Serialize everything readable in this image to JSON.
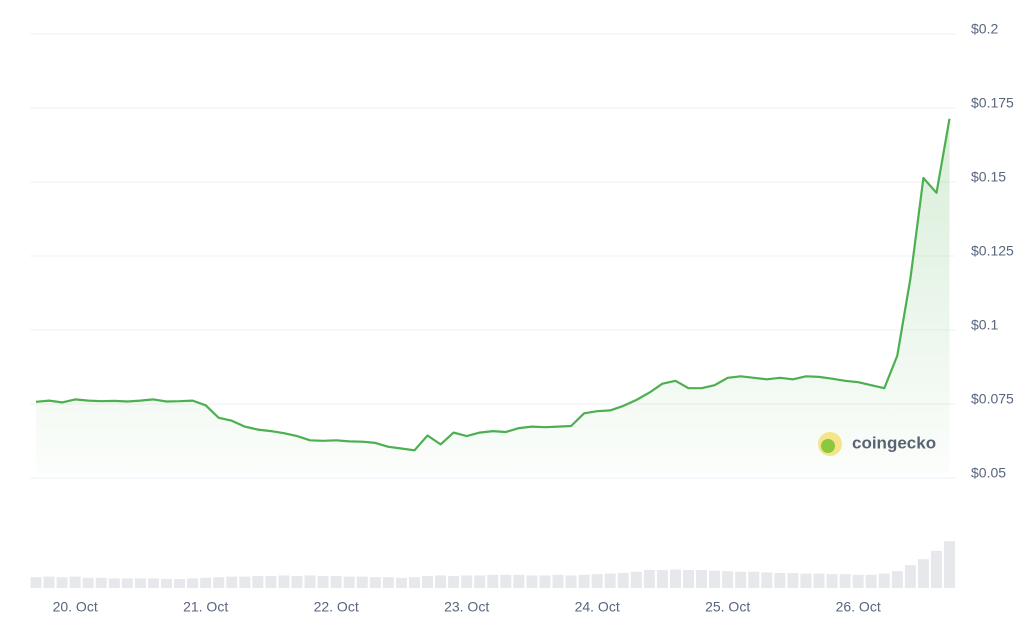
{
  "chart_data": {
    "type": "line",
    "categories": [
      null,
      null,
      null,
      "20. Oct",
      null,
      null,
      null,
      null,
      null,
      null,
      null,
      null,
      null,
      "21. Oct",
      null,
      null,
      null,
      null,
      null,
      null,
      null,
      null,
      null,
      "22. Oct",
      null,
      null,
      null,
      null,
      null,
      null,
      null,
      null,
      null,
      "23. Oct",
      null,
      null,
      null,
      null,
      null,
      null,
      null,
      null,
      null,
      "24. Oct",
      null,
      null,
      null,
      null,
      null,
      null,
      null,
      null,
      null,
      "25. Oct",
      null,
      null,
      null,
      null,
      null,
      null,
      null,
      null,
      null,
      "26. Oct",
      null,
      null,
      null,
      null,
      null,
      null,
      null
    ],
    "series": [
      {
        "color": "#4caf50",
        "values": [
          0.0744,
          0.0748,
          0.0742,
          0.0752,
          0.0748,
          0.0746,
          0.0747,
          0.0745,
          0.0748,
          0.0752,
          0.0745,
          0.0746,
          0.0748,
          0.0732,
          0.069,
          0.068,
          0.066,
          0.065,
          0.0645,
          0.0638,
          0.0628,
          0.0614,
          0.0612,
          0.0614,
          0.061,
          0.0609,
          0.0605,
          0.0592,
          0.0586,
          0.058,
          0.063,
          0.06,
          0.064,
          0.0628,
          0.064,
          0.0645,
          0.0642,
          0.0655,
          0.066,
          0.0658,
          0.066,
          0.0662,
          0.0705,
          0.0712,
          0.0715,
          0.073,
          0.075,
          0.0775,
          0.0805,
          0.0815,
          0.079,
          0.079,
          0.08,
          0.0825,
          0.083,
          0.0825,
          0.082,
          0.0825,
          0.082,
          0.083,
          0.0828,
          0.0822,
          0.0815,
          0.081,
          0.08,
          0.079,
          0.09,
          0.116,
          0.15,
          0.145,
          0.17
        ]
      },
      {
        "type": "bar",
        "axis": "y2",
        "color": "#e6e8eb",
        "values": [
          18,
          19,
          18,
          19,
          17,
          17,
          16,
          16,
          16,
          16,
          15,
          15,
          16,
          17,
          18,
          19,
          19,
          20,
          20,
          21,
          20,
          21,
          20,
          20,
          19,
          19,
          18,
          18,
          17,
          18,
          20,
          21,
          20,
          21,
          21,
          22,
          22,
          22,
          21,
          21,
          22,
          21,
          22,
          23,
          24,
          25,
          27,
          30,
          30,
          31,
          30,
          30,
          29,
          28,
          27,
          27,
          26,
          25,
          25,
          24,
          24,
          23,
          23,
          22,
          22,
          24,
          28,
          38,
          48,
          62,
          78
        ]
      }
    ],
    "ylim": [
      0.05,
      0.2
    ],
    "yticks": [
      {
        "value": 0.05,
        "label": "$0.05"
      },
      {
        "value": 0.075,
        "label": "$0.075"
      },
      {
        "value": 0.1,
        "label": "$0.1"
      },
      {
        "value": 0.125,
        "label": "$0.125"
      },
      {
        "value": 0.15,
        "label": "$0.15"
      },
      {
        "value": 0.175,
        "label": "$0.175"
      },
      {
        "value": 0.2,
        "label": "$0.2"
      }
    ],
    "y2lim": [
      0,
      100
    ],
    "grid": true,
    "watermark": "coingecko"
  }
}
